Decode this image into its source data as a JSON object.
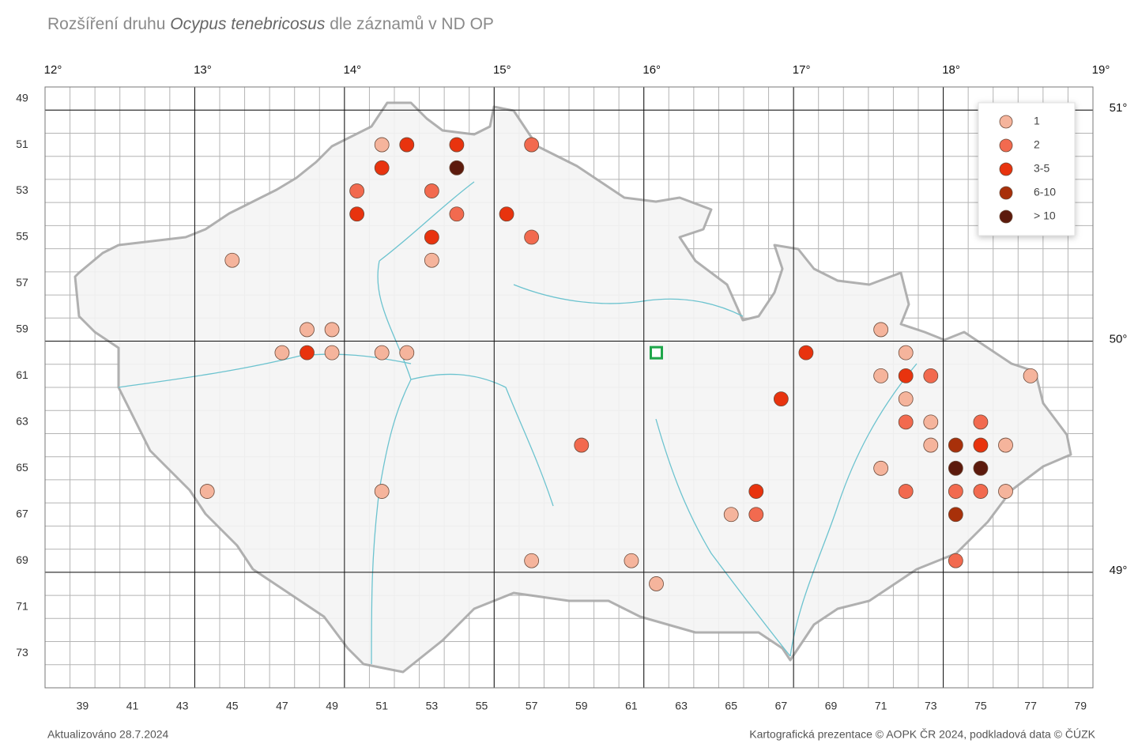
{
  "title": {
    "prefix": "Rozšíření druhu ",
    "species": "Ocypus tenebricosus",
    "suffix": " dle záznamů v ND OP"
  },
  "grid": {
    "col_range": [
      38,
      79
    ],
    "row_range": [
      49,
      74
    ],
    "origin": {
      "lon": 12,
      "col": 38,
      "lat": 51,
      "row": 50,
      "cols_per_degree": 6,
      "rows_per_degree": 10
    },
    "col_labels": [
      39,
      41,
      43,
      45,
      47,
      49,
      51,
      53,
      55,
      57,
      59,
      61,
      63,
      65,
      67,
      69,
      71,
      73,
      75,
      77,
      79
    ],
    "row_labels": [
      49,
      51,
      53,
      55,
      57,
      59,
      61,
      63,
      65,
      67,
      69,
      71,
      73
    ],
    "lon_ticks": [
      {
        "value": 12,
        "label": "12°"
      },
      {
        "value": 13,
        "label": "13°"
      },
      {
        "value": 14,
        "label": "14°"
      },
      {
        "value": 15,
        "label": "15°"
      },
      {
        "value": 16,
        "label": "16°"
      },
      {
        "value": 17,
        "label": "17°"
      },
      {
        "value": 18,
        "label": "18°"
      },
      {
        "value": 19,
        "label": "19°"
      }
    ],
    "lat_ticks": [
      {
        "value": 51,
        "label": "51°"
      },
      {
        "value": 50,
        "label": "50°"
      },
      {
        "value": 49,
        "label": "49°"
      }
    ]
  },
  "legend": [
    {
      "label": "1",
      "color": "#f5b49c"
    },
    {
      "label": "2",
      "color": "#f26a4f"
    },
    {
      "label": "3-5",
      "color": "#e8330e"
    },
    {
      "label": "6-10",
      "color": "#a8300a"
    },
    {
      "label": "> 10",
      "color": "#5c1a0c"
    }
  ],
  "records": [
    {
      "col": 51,
      "row": 51,
      "class": "1"
    },
    {
      "col": 52,
      "row": 51,
      "class": "3-5"
    },
    {
      "col": 54,
      "row": 51,
      "class": "3-5"
    },
    {
      "col": 57,
      "row": 51,
      "class": "2"
    },
    {
      "col": 51,
      "row": 52,
      "class": "3-5"
    },
    {
      "col": 54,
      "row": 52,
      "class": "> 10"
    },
    {
      "col": 50,
      "row": 53,
      "class": "2"
    },
    {
      "col": 53,
      "row": 53,
      "class": "2"
    },
    {
      "col": 50,
      "row": 54,
      "class": "3-5"
    },
    {
      "col": 54,
      "row": 54,
      "class": "2"
    },
    {
      "col": 56,
      "row": 54,
      "class": "3-5"
    },
    {
      "col": 53,
      "row": 55,
      "class": "3-5"
    },
    {
      "col": 57,
      "row": 55,
      "class": "2"
    },
    {
      "col": 45,
      "row": 56,
      "class": "1"
    },
    {
      "col": 53,
      "row": 56,
      "class": "1"
    },
    {
      "col": 48,
      "row": 59,
      "class": "1"
    },
    {
      "col": 49,
      "row": 59,
      "class": "1"
    },
    {
      "col": 71,
      "row": 59,
      "class": "1"
    },
    {
      "col": 47,
      "row": 60,
      "class": "1"
    },
    {
      "col": 48,
      "row": 60,
      "class": "3-5"
    },
    {
      "col": 49,
      "row": 60,
      "class": "1"
    },
    {
      "col": 51,
      "row": 60,
      "class": "1"
    },
    {
      "col": 52,
      "row": 60,
      "class": "1"
    },
    {
      "col": 68,
      "row": 60,
      "class": "3-5"
    },
    {
      "col": 72,
      "row": 60,
      "class": "1"
    },
    {
      "col": 71,
      "row": 61,
      "class": "1"
    },
    {
      "col": 72,
      "row": 61,
      "class": "3-5"
    },
    {
      "col": 73,
      "row": 61,
      "class": "2"
    },
    {
      "col": 77,
      "row": 61,
      "class": "1"
    },
    {
      "col": 67,
      "row": 62,
      "class": "3-5"
    },
    {
      "col": 72,
      "row": 62,
      "class": "1"
    },
    {
      "col": 72,
      "row": 63,
      "class": "2"
    },
    {
      "col": 73,
      "row": 63,
      "class": "1"
    },
    {
      "col": 75,
      "row": 63,
      "class": "2"
    },
    {
      "col": 59,
      "row": 64,
      "class": "2"
    },
    {
      "col": 73,
      "row": 64,
      "class": "1"
    },
    {
      "col": 74,
      "row": 64,
      "class": "6-10"
    },
    {
      "col": 75,
      "row": 64,
      "class": "3-5"
    },
    {
      "col": 76,
      "row": 64,
      "class": "1"
    },
    {
      "col": 71,
      "row": 65,
      "class": "1"
    },
    {
      "col": 74,
      "row": 65,
      "class": "> 10"
    },
    {
      "col": 75,
      "row": 65,
      "class": "> 10"
    },
    {
      "col": 44,
      "row": 66,
      "class": "1"
    },
    {
      "col": 51,
      "row": 66,
      "class": "1"
    },
    {
      "col": 66,
      "row": 66,
      "class": "3-5"
    },
    {
      "col": 72,
      "row": 66,
      "class": "2"
    },
    {
      "col": 74,
      "row": 66,
      "class": "2"
    },
    {
      "col": 75,
      "row": 66,
      "class": "2"
    },
    {
      "col": 76,
      "row": 66,
      "class": "1"
    },
    {
      "col": 65,
      "row": 67,
      "class": "1"
    },
    {
      "col": 66,
      "row": 67,
      "class": "2"
    },
    {
      "col": 74,
      "row": 67,
      "class": "6-10"
    },
    {
      "col": 57,
      "row": 69,
      "class": "1"
    },
    {
      "col": 61,
      "row": 69,
      "class": "1"
    },
    {
      "col": 74,
      "row": 69,
      "class": "2"
    },
    {
      "col": 62,
      "row": 70,
      "class": "1"
    }
  ],
  "highlight_square": {
    "col": 62,
    "row": 60,
    "color": "#1fa64a"
  },
  "footer": {
    "updated": "Aktualizováno 28.7.2024",
    "credits": "Kartografická prezentace © AOPK ČR 2024, podkladová data © ČÚZK"
  }
}
